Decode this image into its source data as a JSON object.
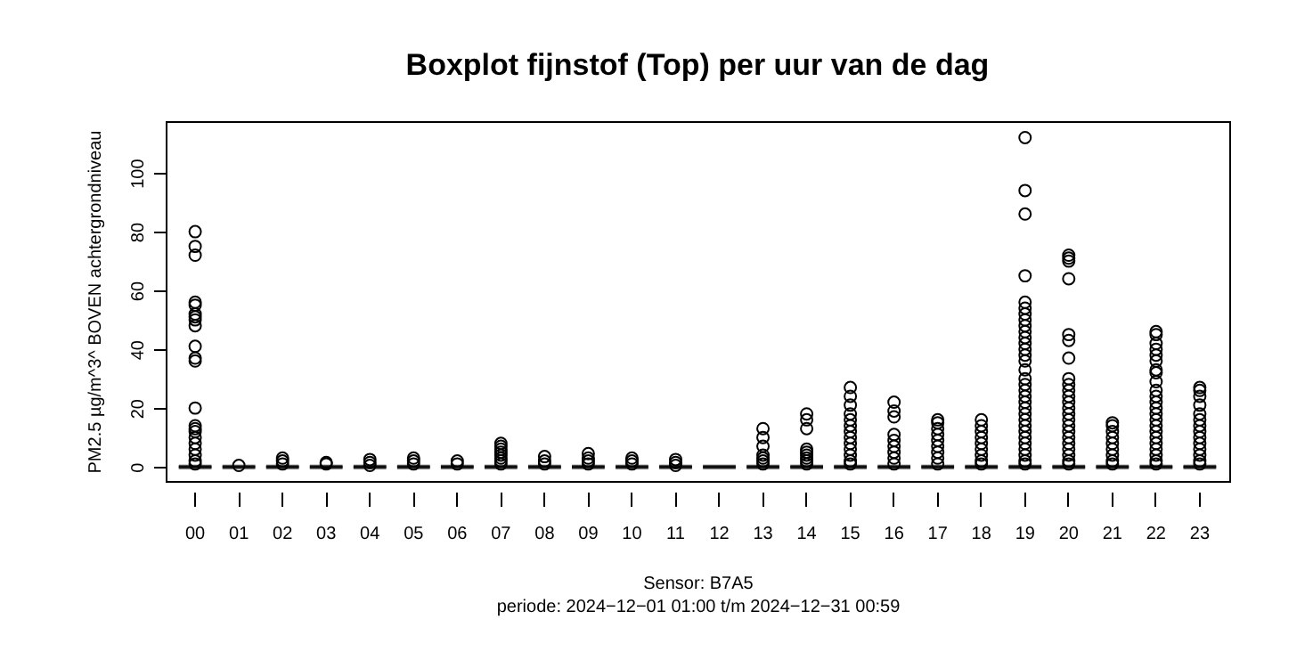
{
  "chart_data": {
    "type": "box",
    "title": "Boxplot fijnstof (Top) per uur van de dag",
    "xlabel": "Sensor: B7A5",
    "ylabel": "PM2.5 µg/m^3^  BOVEN achtergrondniveau",
    "annotations": [
      "periode: 2024−12−01 01:00 t/m 2024−12−31 00:59"
    ],
    "categories": [
      "00",
      "01",
      "02",
      "03",
      "04",
      "05",
      "06",
      "07",
      "08",
      "09",
      "10",
      "11",
      "12",
      "13",
      "14",
      "15",
      "16",
      "17",
      "18",
      "19",
      "20",
      "21",
      "22",
      "23"
    ],
    "ylim": [
      -4.8,
      117.6
    ],
    "yticks": [
      0,
      20,
      40,
      60,
      80,
      100
    ],
    "grid": false,
    "marker": "circle",
    "boxes": [
      {
        "low": 0,
        "q1": 0,
        "median": 0,
        "q3": 0,
        "high": 0,
        "outliers": [
          80,
          75,
          72,
          56,
          55,
          52,
          51,
          50,
          48,
          41,
          37,
          36,
          20,
          14,
          13,
          12,
          10,
          8,
          6,
          4,
          2,
          1
        ]
      },
      {
        "low": 0,
        "q1": 0,
        "median": 0,
        "q3": 0,
        "high": 0,
        "outliers": [
          0.5
        ]
      },
      {
        "low": 0,
        "q1": 0,
        "median": 0,
        "q3": 0,
        "high": 0,
        "outliers": [
          3,
          2,
          1
        ]
      },
      {
        "low": 0,
        "q1": 0,
        "median": 0,
        "q3": 0,
        "high": 0,
        "outliers": [
          1.5,
          1
        ]
      },
      {
        "low": 0,
        "q1": 0,
        "median": 0,
        "q3": 0,
        "high": 0,
        "outliers": [
          2.5,
          1.5,
          0.5
        ]
      },
      {
        "low": 0,
        "q1": 0,
        "median": 0,
        "q3": 0,
        "high": 0,
        "outliers": [
          3,
          2,
          1
        ]
      },
      {
        "low": 0,
        "q1": 0,
        "median": 0,
        "q3": 0,
        "high": 0,
        "outliers": [
          2,
          1
        ]
      },
      {
        "low": 0,
        "q1": 0,
        "median": 0,
        "q3": 0,
        "high": 0,
        "outliers": [
          8,
          7,
          6,
          5,
          4,
          3,
          2,
          1
        ]
      },
      {
        "low": 0,
        "q1": 0,
        "median": 0,
        "q3": 0,
        "high": 0,
        "outliers": [
          3.5,
          2,
          1
        ]
      },
      {
        "low": 0,
        "q1": 0,
        "median": 0,
        "q3": 0,
        "high": 0,
        "outliers": [
          4.5,
          3,
          2,
          1
        ]
      },
      {
        "low": 0,
        "q1": 0,
        "median": 0,
        "q3": 0,
        "high": 0,
        "outliers": [
          3,
          2,
          1
        ]
      },
      {
        "low": 0,
        "q1": 0,
        "median": 0,
        "q3": 0,
        "high": 0,
        "outliers": [
          2.5,
          1.5,
          0.5
        ]
      },
      {
        "low": 0,
        "q1": 0,
        "median": 0,
        "q3": 0,
        "high": 0
      },
      {
        "low": 0,
        "q1": 0,
        "median": 0,
        "q3": 0,
        "high": 0,
        "outliers": [
          13,
          10,
          7,
          4,
          3,
          2,
          1
        ]
      },
      {
        "low": 0,
        "q1": 0,
        "median": 0,
        "q3": 0,
        "high": 0,
        "outliers": [
          18,
          16,
          13,
          6,
          5,
          4,
          3,
          2,
          1
        ]
      },
      {
        "low": 0,
        "q1": 0,
        "median": 0,
        "q3": 0,
        "high": 0,
        "outliers": [
          27,
          24,
          21,
          18,
          16,
          14,
          12,
          10,
          8,
          6,
          4,
          2,
          1
        ]
      },
      {
        "low": 0,
        "q1": 0,
        "median": 0,
        "q3": 0,
        "high": 0,
        "outliers": [
          22,
          19,
          17,
          11,
          9,
          7,
          5,
          3,
          1
        ]
      },
      {
        "low": 0,
        "q1": 0,
        "median": 0,
        "q3": 0,
        "high": 0,
        "outliers": [
          16,
          15,
          13,
          11,
          9,
          7,
          5,
          3,
          1
        ]
      },
      {
        "low": 0,
        "q1": 0,
        "median": 0,
        "q3": 0,
        "high": 0,
        "outliers": [
          16,
          14,
          12,
          10,
          8,
          6,
          4,
          2,
          1
        ]
      },
      {
        "low": 0,
        "q1": 0,
        "median": 0,
        "q3": 0,
        "high": 0,
        "outliers": [
          112,
          94,
          86,
          65,
          56,
          54,
          52,
          50,
          48,
          46,
          44,
          42,
          40,
          38,
          36,
          33,
          30,
          28,
          26,
          24,
          22,
          20,
          18,
          16,
          14,
          12,
          10,
          8,
          6,
          4,
          2,
          1
        ]
      },
      {
        "low": 0,
        "q1": 0,
        "median": 0,
        "q3": 0,
        "high": 0,
        "outliers": [
          72,
          71,
          70,
          64,
          45,
          43,
          37,
          30,
          28,
          26,
          24,
          22,
          20,
          18,
          16,
          14,
          12,
          10,
          8,
          6,
          4,
          2,
          1
        ]
      },
      {
        "low": 0,
        "q1": 0,
        "median": 0,
        "q3": 0,
        "high": 0,
        "outliers": [
          15,
          14,
          12,
          10,
          8,
          6,
          4,
          2,
          1
        ]
      },
      {
        "low": 0,
        "q1": 0,
        "median": 0,
        "q3": 0,
        "high": 0,
        "outliers": [
          46,
          45,
          42,
          40,
          38,
          36,
          33,
          32,
          29,
          26,
          24,
          22,
          20,
          18,
          16,
          14,
          12,
          10,
          8,
          6,
          4,
          2,
          1
        ]
      },
      {
        "low": 0,
        "q1": 0,
        "median": 0,
        "q3": 0,
        "high": 0,
        "outliers": [
          27,
          26,
          24,
          21,
          18,
          16,
          14,
          12,
          10,
          8,
          6,
          4,
          2,
          1
        ]
      }
    ]
  }
}
